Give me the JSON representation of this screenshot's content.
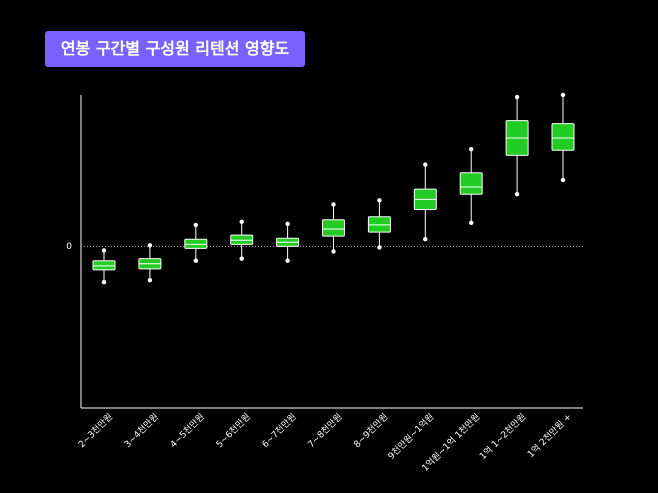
{
  "title": "연봉 구간별 구성원 리텐션 영향도",
  "chart_data": {
    "type": "boxplot",
    "title": "연봉 구간별 구성원 리텐션 영향도",
    "xlabel": "",
    "ylabel": "",
    "y_tick_labels": [
      "0"
    ],
    "ylim": [
      -158,
      148
    ],
    "zero_line": "dotted",
    "colors": {
      "box": "#22cc22",
      "whisker": "#ffffff",
      "median": "#ffffff",
      "axis": "#ffffff"
    },
    "categories": [
      "2~3천만원",
      "3~4천만원",
      "4~5천만원",
      "5~6천만원",
      "6~7천만원",
      "7~8천만원",
      "8~9천만원",
      "9천만원~1억원",
      "1억원~1억 1천만원",
      "1억 1~2천만원",
      "1억 2천만원 +"
    ],
    "boxes": [
      {
        "min": -35,
        "q1": -23,
        "median": -19,
        "q3": -14,
        "max": -4
      },
      {
        "min": -33,
        "q1": -22,
        "median": -17,
        "q3": -12,
        "max": 1
      },
      {
        "min": -14,
        "q1": -2,
        "median": 2,
        "q3": 7,
        "max": 21
      },
      {
        "min": -12,
        "q1": 2,
        "median": 6,
        "q3": 11,
        "max": 24
      },
      {
        "min": -14,
        "q1": 0,
        "median": 4,
        "q3": 8,
        "max": 22
      },
      {
        "min": -5,
        "q1": 10,
        "median": 17,
        "q3": 26,
        "max": 41
      },
      {
        "min": -1,
        "q1": 14,
        "median": 21,
        "q3": 29,
        "max": 45
      },
      {
        "min": 7,
        "q1": 36,
        "median": 46,
        "q3": 56,
        "max": 80
      },
      {
        "min": 23,
        "q1": 51,
        "median": 58,
        "q3": 72,
        "max": 95
      },
      {
        "min": 51,
        "q1": 89,
        "median": 106,
        "q3": 123,
        "max": 146
      },
      {
        "min": 65,
        "q1": 94,
        "median": 106,
        "q3": 120,
        "max": 148
      }
    ]
  }
}
